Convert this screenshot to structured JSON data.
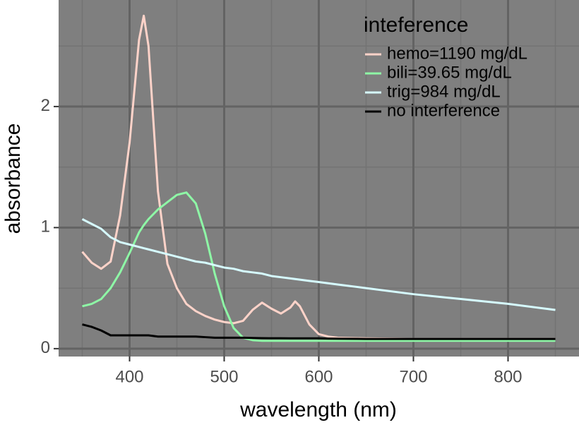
{
  "chart_data": {
    "type": "line",
    "x_label": "wavelength (nm)",
    "y_label": "absorbance",
    "legend_title": "inteference",
    "x": [
      350,
      360,
      370,
      380,
      390,
      400,
      410,
      415,
      420,
      430,
      440,
      450,
      460,
      470,
      480,
      490,
      500,
      510,
      520,
      530,
      540,
      550,
      560,
      570,
      575,
      580,
      590,
      600,
      610,
      620,
      650,
      700,
      750,
      800,
      850
    ],
    "series": [
      {
        "name": "hemo=1190 mg/dL",
        "color": "#ffd3c9",
        "values": [
          0.8,
          0.71,
          0.66,
          0.72,
          1.1,
          1.7,
          2.55,
          2.75,
          2.5,
          1.3,
          0.7,
          0.5,
          0.37,
          0.31,
          0.27,
          0.24,
          0.22,
          0.21,
          0.23,
          0.32,
          0.38,
          0.33,
          0.29,
          0.34,
          0.39,
          0.35,
          0.2,
          0.12,
          0.1,
          0.09,
          0.085,
          0.08,
          0.08,
          0.08,
          0.08
        ]
      },
      {
        "name": "bili=39.65 mg/dL",
        "color": "#8ef7a6",
        "values": [
          0.35,
          0.37,
          0.41,
          0.5,
          0.63,
          0.79,
          0.96,
          1.02,
          1.07,
          1.15,
          1.21,
          1.27,
          1.29,
          1.2,
          0.95,
          0.62,
          0.35,
          0.17,
          0.09,
          0.07,
          0.065,
          0.065,
          0.065,
          0.065,
          0.065,
          0.065,
          0.065,
          0.065,
          0.065,
          0.065,
          0.065,
          0.065,
          0.065,
          0.065,
          0.065
        ]
      },
      {
        "name": "trig=984 mg/dL",
        "color": "#d6fbff",
        "values": [
          1.07,
          1.03,
          0.99,
          0.92,
          0.88,
          0.86,
          0.84,
          0.83,
          0.82,
          0.8,
          0.78,
          0.76,
          0.74,
          0.72,
          0.71,
          0.69,
          0.67,
          0.66,
          0.64,
          0.63,
          0.62,
          0.6,
          0.59,
          0.58,
          0.575,
          0.57,
          0.56,
          0.55,
          0.54,
          0.53,
          0.5,
          0.45,
          0.41,
          0.37,
          0.32
        ]
      },
      {
        "name": "no interference",
        "color": "#000000",
        "values": [
          0.2,
          0.18,
          0.15,
          0.11,
          0.11,
          0.11,
          0.11,
          0.11,
          0.11,
          0.1,
          0.1,
          0.1,
          0.1,
          0.1,
          0.095,
          0.09,
          0.09,
          0.09,
          0.09,
          0.088,
          0.087,
          0.086,
          0.086,
          0.085,
          0.085,
          0.085,
          0.085,
          0.085,
          0.083,
          0.082,
          0.08,
          0.08,
          0.08,
          0.08,
          0.08
        ]
      }
    ],
    "xlim": [
      325,
      875
    ],
    "ylim": [
      -0.065,
      2.88
    ],
    "xticks": [
      400,
      500,
      600,
      700,
      800
    ],
    "yticks": [
      0,
      1,
      2
    ],
    "x_minor_ticks": [
      350,
      450,
      550,
      650,
      750,
      850
    ],
    "y_minor_ticks": [
      0.5,
      1.5,
      2.5
    ],
    "grid": true,
    "legend": "top-right"
  }
}
